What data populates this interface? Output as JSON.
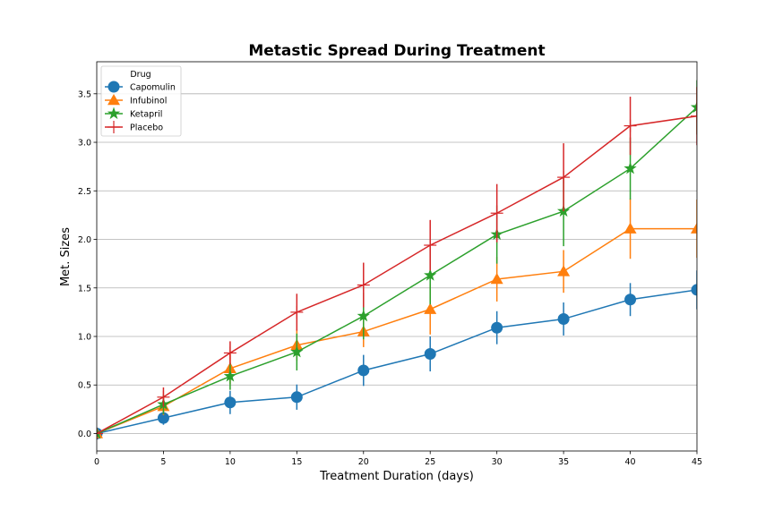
{
  "chart_data": {
    "type": "line",
    "title": "Metastic Spread During Treatment",
    "xlabel": "Treatment Duration (days)",
    "ylabel": "Met. Sizes",
    "xlim": [
      0,
      45
    ],
    "ylim": [
      -0.18,
      3.83
    ],
    "xticks": [
      0,
      5,
      10,
      15,
      20,
      25,
      30,
      35,
      40,
      45
    ],
    "yticks": [
      0.0,
      0.5,
      1.0,
      1.5,
      2.0,
      2.5,
      3.0,
      3.5
    ],
    "ytick_labels": [
      "0.0",
      "0.5",
      "1.0",
      "1.5",
      "2.0",
      "2.5",
      "3.0",
      "3.5"
    ],
    "grid": "horizontal",
    "legend": {
      "title": "Drug",
      "placement": "upper-left"
    },
    "x": [
      0,
      5,
      10,
      15,
      20,
      25,
      30,
      35,
      40,
      45
    ],
    "series": [
      {
        "name": "Capomulin",
        "color": "#1f77b4",
        "marker": "circle",
        "values": [
          0.0,
          0.16,
          0.32,
          0.375,
          0.65,
          0.82,
          1.09,
          1.18,
          1.38,
          1.48
        ],
        "errors": [
          0.0,
          0.07,
          0.12,
          0.13,
          0.16,
          0.18,
          0.17,
          0.17,
          0.17,
          0.2
        ]
      },
      {
        "name": "Infubinol",
        "color": "#ff7f0e",
        "marker": "triangle",
        "values": [
          0.0,
          0.28,
          0.67,
          0.91,
          1.05,
          1.28,
          1.59,
          1.67,
          2.11,
          2.11
        ],
        "errors": [
          0.0,
          0.09,
          0.16,
          0.16,
          0.16,
          0.26,
          0.23,
          0.22,
          0.31,
          0.3
        ]
      },
      {
        "name": "Ketapril",
        "color": "#2ca02c",
        "marker": "star",
        "values": [
          0.0,
          0.3,
          0.59,
          0.84,
          1.21,
          1.63,
          2.05,
          2.29,
          2.73,
          3.36
        ],
        "errors": [
          0.0,
          0.1,
          0.14,
          0.19,
          0.24,
          0.3,
          0.3,
          0.36,
          0.32,
          0.28
        ]
      },
      {
        "name": "Placebo",
        "color": "#d62728",
        "marker": "plus",
        "values": [
          0.0,
          0.375,
          0.83,
          1.25,
          1.53,
          1.94,
          2.27,
          2.64,
          3.17,
          3.27
        ],
        "errors": [
          0.0,
          0.1,
          0.12,
          0.19,
          0.23,
          0.26,
          0.3,
          0.35,
          0.3,
          0.3
        ]
      }
    ]
  }
}
